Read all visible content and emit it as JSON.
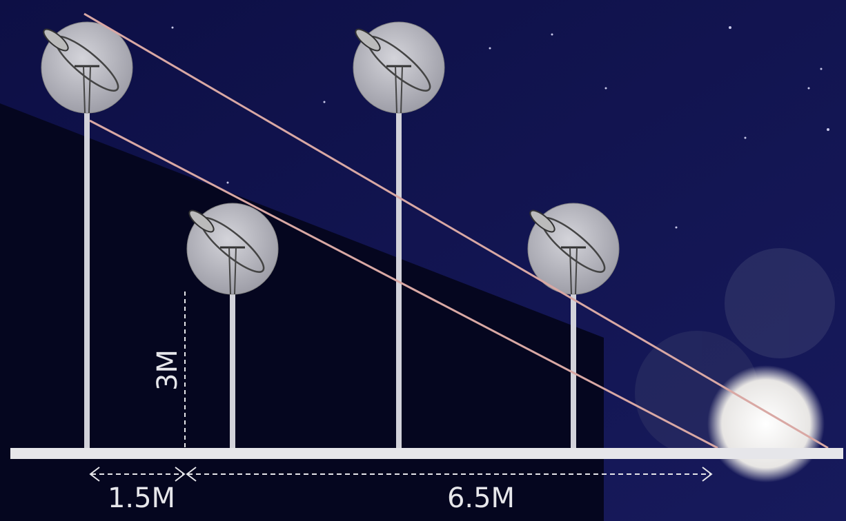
{
  "labels": {
    "height": "3M",
    "left_spacing": "1.5M",
    "distance": "6.5M"
  }
}
